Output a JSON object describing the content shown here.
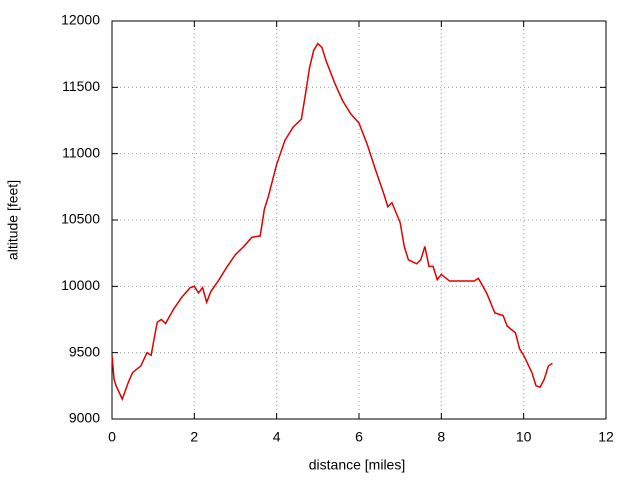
{
  "chart_data": {
    "type": "line",
    "x_label": "distance [miles]",
    "y_label": "altitude [feet]",
    "series": [
      {
        "color": "#e00000",
        "x": [
          0,
          0.05,
          0.1,
          0.25,
          0.4,
          0.5,
          0.7,
          0.85,
          0.95,
          1.05,
          1.1,
          1.2,
          1.3,
          1.5,
          1.7,
          1.9,
          2.0,
          2.1,
          2.2,
          2.3,
          2.4,
          2.6,
          2.8,
          3.0,
          3.2,
          3.4,
          3.6,
          3.7,
          3.8,
          4.0,
          4.2,
          4.4,
          4.6,
          4.7,
          4.8,
          4.9,
          5.0,
          5.1,
          5.2,
          5.4,
          5.6,
          5.8,
          6.0,
          6.2,
          6.4,
          6.6,
          6.7,
          6.8,
          7.0,
          7.1,
          7.2,
          7.4,
          7.5,
          7.6,
          7.7,
          7.8,
          7.9,
          8.0,
          8.2,
          8.8,
          8.9,
          9.1,
          9.3,
          9.5,
          9.6,
          9.8,
          9.9,
          10.0,
          10.2,
          10.3,
          10.4,
          10.5,
          10.6,
          10.7
        ],
        "values": [
          9480,
          9300,
          9250,
          9150,
          9280,
          9350,
          9400,
          9500,
          9480,
          9650,
          9730,
          9750,
          9720,
          9830,
          9920,
          9990,
          10000,
          9950,
          9990,
          9880,
          9960,
          10050,
          10150,
          10240,
          10300,
          10370,
          10380,
          10580,
          10680,
          10920,
          11100,
          11200,
          11260,
          11450,
          11650,
          11780,
          11830,
          11800,
          11700,
          11540,
          11400,
          11300,
          11230,
          11070,
          10880,
          10700,
          10600,
          10630,
          10480,
          10300,
          10200,
          10170,
          10200,
          10300,
          10150,
          10150,
          10050,
          10090,
          10040,
          10040,
          10060,
          9950,
          9800,
          9780,
          9700,
          9650,
          9530,
          9480,
          9350,
          9250,
          9240,
          9300,
          9400,
          9420
        ]
      }
    ],
    "xlim": [
      0,
      12
    ],
    "xticks": [
      0,
      2,
      4,
      6,
      8,
      10,
      12
    ],
    "ylim": [
      9000,
      12000
    ],
    "yticks": [
      9000,
      9500,
      10000,
      10500,
      11000,
      11500,
      12000
    ],
    "grid": true
  }
}
